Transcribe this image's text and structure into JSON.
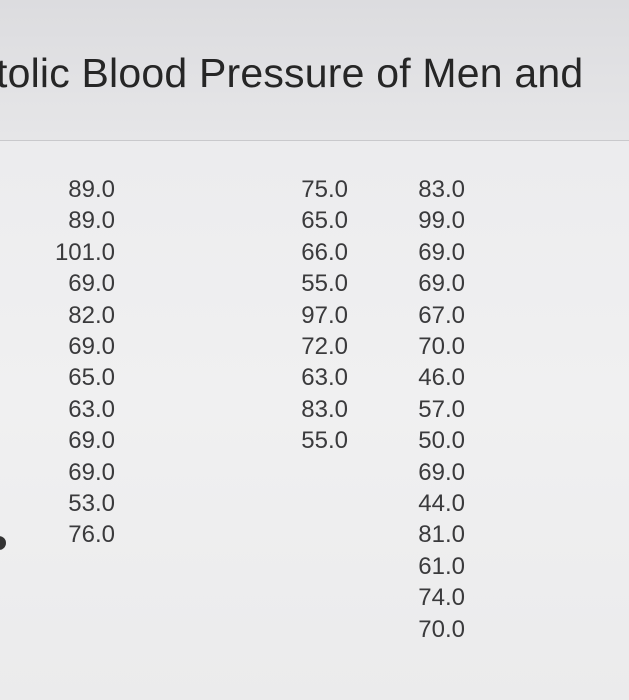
{
  "table": {
    "title": "tolic Blood Pressure of Men and",
    "columns": [
      [
        "89.0",
        "89.0",
        "101.0",
        "69.0",
        "82.0",
        "69.0",
        "65.0",
        "63.0",
        "69.0",
        "69.0",
        "53.0",
        "76.0"
      ],
      [
        "75.0",
        "65.0",
        "66.0",
        "55.0",
        "97.0",
        "72.0",
        "63.0",
        "83.0",
        "55.0"
      ],
      [
        "83.0",
        "99.0",
        "69.0",
        "69.0",
        "67.0",
        "70.0",
        "46.0",
        "57.0",
        "50.0",
        "69.0",
        "44.0",
        "81.0",
        "61.0",
        "74.0",
        "70.0"
      ]
    ]
  }
}
